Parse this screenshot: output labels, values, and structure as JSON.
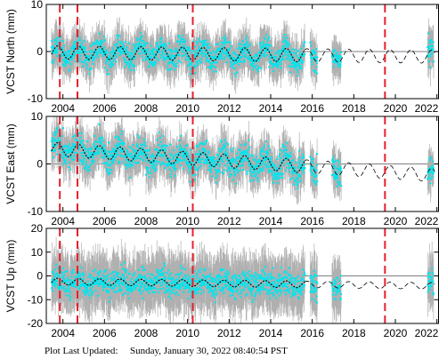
{
  "footer": {
    "label": "Plot Last Updated:",
    "timestamp": "Sunday, January 30, 2022 08:40:54 PST"
  },
  "chart_data": [
    {
      "type": "scatter",
      "ylabel": "VCST North (mm)",
      "xlim": [
        2003.2,
        2022.1
      ],
      "ylim": [
        -10,
        10
      ],
      "yticks": [
        -10,
        0,
        10
      ],
      "xticks": [
        2004,
        2006,
        2008,
        2010,
        2012,
        2014,
        2016,
        2018,
        2020,
        2022
      ],
      "model": {
        "base": -0.5,
        "amp": 1.4,
        "slope": -0.05,
        "ref": 2010,
        "t0": 2003.5
      },
      "scatter": {
        "mean": -0.5,
        "spread": 3.5,
        "err": 3.5
      },
      "points": {
        "color": "#00e5ee"
      },
      "error_bars": {
        "color": "#b0b0b0"
      }
    },
    {
      "type": "scatter",
      "ylabel": "VCST East (mm)",
      "xlim": [
        2003.2,
        2022.1
      ],
      "ylim": [
        -10,
        10
      ],
      "yticks": [
        -10,
        0,
        10
      ],
      "xticks": [
        2004,
        2006,
        2008,
        2010,
        2012,
        2014,
        2016,
        2018,
        2020,
        2022
      ],
      "model": {
        "base": 1.2,
        "amp": 1.4,
        "slope": -0.3,
        "ref": 2010,
        "t0": 2003.5
      },
      "scatter": {
        "mean": 1.0,
        "spread": 4.0,
        "err": 3.5
      },
      "points": {
        "color": "#00e5ee"
      },
      "error_bars": {
        "color": "#b0b0b0"
      }
    },
    {
      "type": "scatter",
      "ylabel": "VCST Up (mm)",
      "xlim": [
        2003.2,
        2022.1
      ],
      "ylim": [
        -20,
        20
      ],
      "yticks": [
        -20,
        -10,
        0,
        10,
        20
      ],
      "xticks": [
        2004,
        2006,
        2008,
        2010,
        2012,
        2014,
        2016,
        2018,
        2020,
        2022
      ],
      "model": {
        "base": -3.0,
        "amp": 1.4,
        "slope": -0.1,
        "ref": 2010,
        "t0": 2003.5
      },
      "scatter": {
        "mean": -3.0,
        "spread": 7.0,
        "err": 10.0
      },
      "points": {
        "color": "#00e5ee"
      },
      "error_bars": {
        "color": "#b0b0b0"
      }
    }
  ],
  "data_segments": [
    [
      2003.45,
      2015.65
    ],
    [
      2015.9,
      2016.25
    ],
    [
      2016.95,
      2017.4
    ],
    [
      2021.55,
      2021.85
    ]
  ],
  "model_line": {
    "end": 2021.9,
    "color": "#000000"
  },
  "events": {
    "dates": [
      2003.85,
      2004.7,
      2010.25,
      2019.5
    ],
    "color": "#e8202a"
  }
}
